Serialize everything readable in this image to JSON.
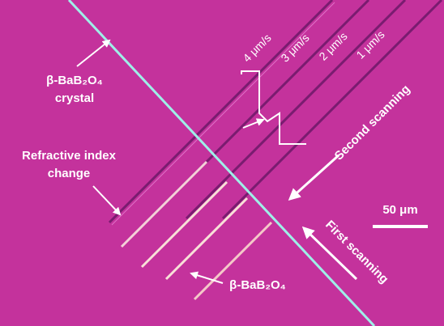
{
  "labels": {
    "crystal": [
      "β-BaB₂O₄",
      "crystal"
    ],
    "refractive": [
      "Refractive index",
      "change"
    ],
    "bottom": "β-BaB₂O₄",
    "speeds": [
      "4 μm/s",
      "3 μm/s",
      "2 μm/s",
      "1 μm/s"
    ],
    "second": "Second scanning",
    "first": "First scanning",
    "scale": "50 μm"
  }
}
